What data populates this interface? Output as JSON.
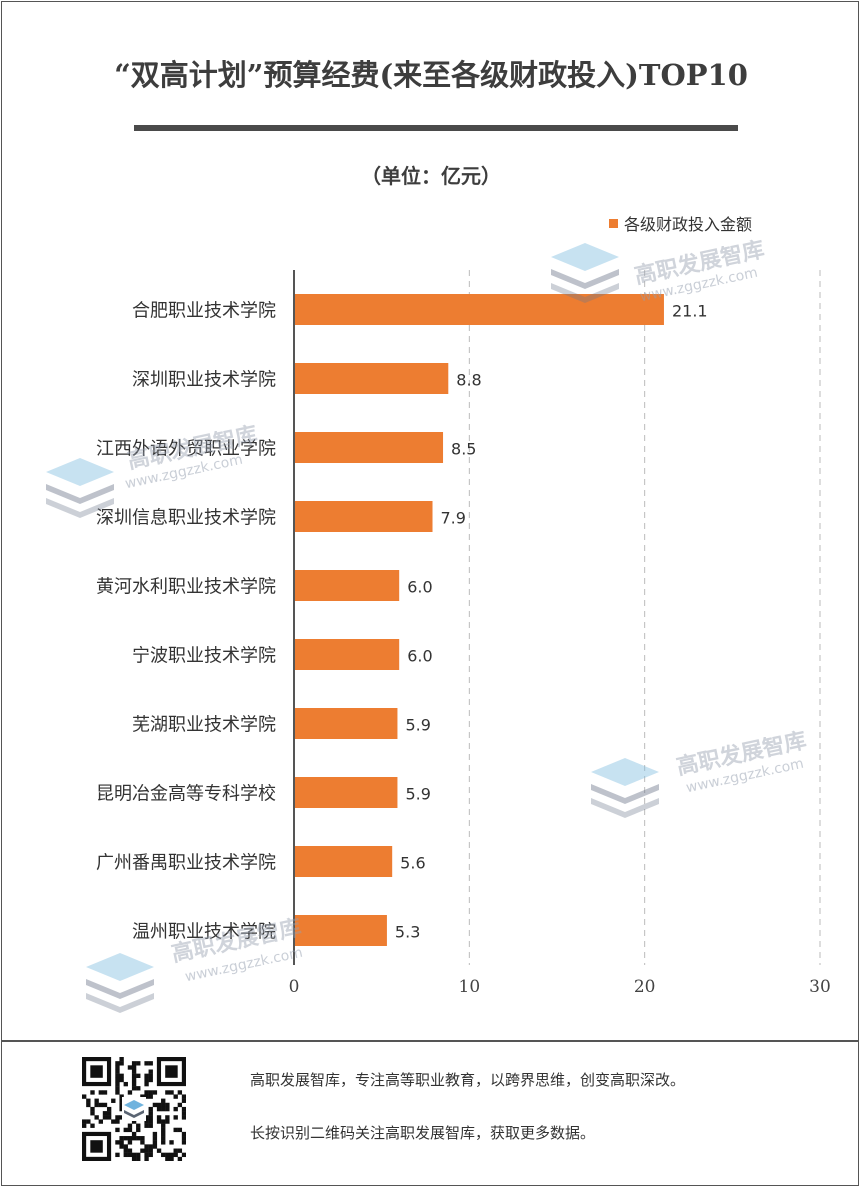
{
  "header": {
    "title": "“双高计划”预算经费(来至各级财政投入)TOP10",
    "unit": "（单位：亿元）"
  },
  "colors": {
    "bar": "#ed7d31",
    "axis": "#555555",
    "grid": "#bbbbbb"
  },
  "chart_data": {
    "type": "bar",
    "orientation": "horizontal",
    "title": "“双高计划”预算经费(来至各级财政投入)TOP10",
    "ylabel": "（单位：亿元）",
    "legend": {
      "label": "各级财政投入金额",
      "position": "top-right"
    },
    "categories": [
      "合肥职业技术学院",
      "深圳职业技术学院",
      "江西外语外贸职业学院",
      "深圳信息职业技术学院",
      "黄河水利职业技术学院",
      "宁波职业技术学院",
      "芜湖职业技术学院",
      "昆明冶金高等专科学校",
      "广州番禺职业技术学院",
      "温州职业技术学院"
    ],
    "values": [
      21.1,
      8.8,
      8.5,
      7.9,
      6.0,
      6.0,
      5.9,
      5.9,
      5.6,
      5.3
    ],
    "value_labels": [
      "21.1",
      "8.8",
      "8.5",
      "7.9",
      "6.0",
      "6.0",
      "5.9",
      "5.9",
      "5.6",
      "5.3"
    ],
    "xlim": [
      0,
      30
    ],
    "xticks": [
      "0",
      "10",
      "20",
      "30"
    ],
    "grid": "vertical dashed"
  },
  "watermark": {
    "name": "高职发展智库",
    "url": "www.zggzzk.com"
  },
  "footer": {
    "line1": "高职发展智库，专注高等职业教育，以跨界思维，创变高职深改。",
    "line2": "长按识别二维码关注高职发展智库，获取更多数据。"
  }
}
